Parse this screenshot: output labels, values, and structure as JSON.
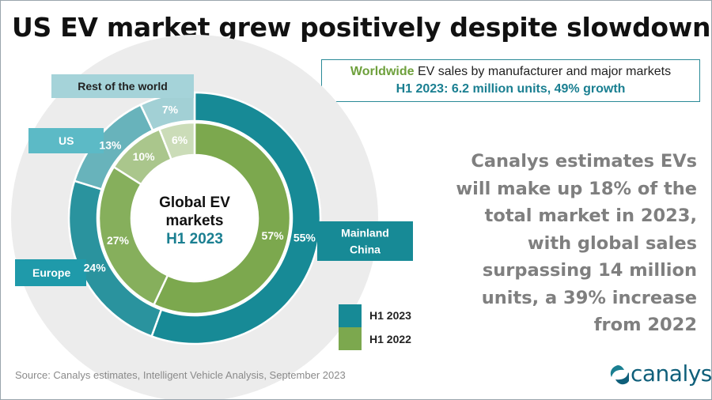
{
  "title": "US EV market grew positively despite slowdown",
  "infobox": {
    "line1_highlight": "Worldwide",
    "line1_rest": " EV sales by manufacturer and major markets",
    "line2_highlight": "H1 2023",
    "line2_rest": ": 6.2 million units, 49% growth"
  },
  "note": "Canalys estimates EVs will make up 18% of the total market in 2023, with global sales surpassing 14 million units, a 39% increase from 2022",
  "source": "Source:  Canalys estimates, Intelligent Vehicle Analysis, September 2023",
  "logo": {
    "text": "canalys",
    "icon": "canalys-logo-icon"
  },
  "colors": {
    "h1_2023": "#178a96",
    "h1_2022": "#7ca84e",
    "bg_ring": "#ececec"
  },
  "center_label": {
    "line1": "Global EV",
    "line2": "markets",
    "line3": "H1 2023"
  },
  "region_labels": {
    "rest": "Rest of the world",
    "us": "US",
    "europe": "Europe",
    "china": "Mainland China"
  },
  "legend": [
    {
      "label": "H1 2023",
      "color": "#178a96"
    },
    {
      "label": "H1 2022",
      "color": "#7ca84e"
    }
  ],
  "chart_data": {
    "type": "pie",
    "subtype": "nested-donut",
    "categories": [
      "Mainland China",
      "Europe",
      "US",
      "Rest of the world"
    ],
    "series": [
      {
        "name": "H1 2023",
        "ring": "outer",
        "values": [
          55,
          24,
          13,
          7
        ],
        "labels": [
          "55%",
          "24%",
          "13%",
          "7%"
        ]
      },
      {
        "name": "H1 2022",
        "ring": "inner",
        "values": [
          57,
          27,
          10,
          6
        ],
        "labels": [
          "57%",
          "27%",
          "10%",
          "6%"
        ]
      }
    ],
    "legend_position": "bottom-right"
  }
}
